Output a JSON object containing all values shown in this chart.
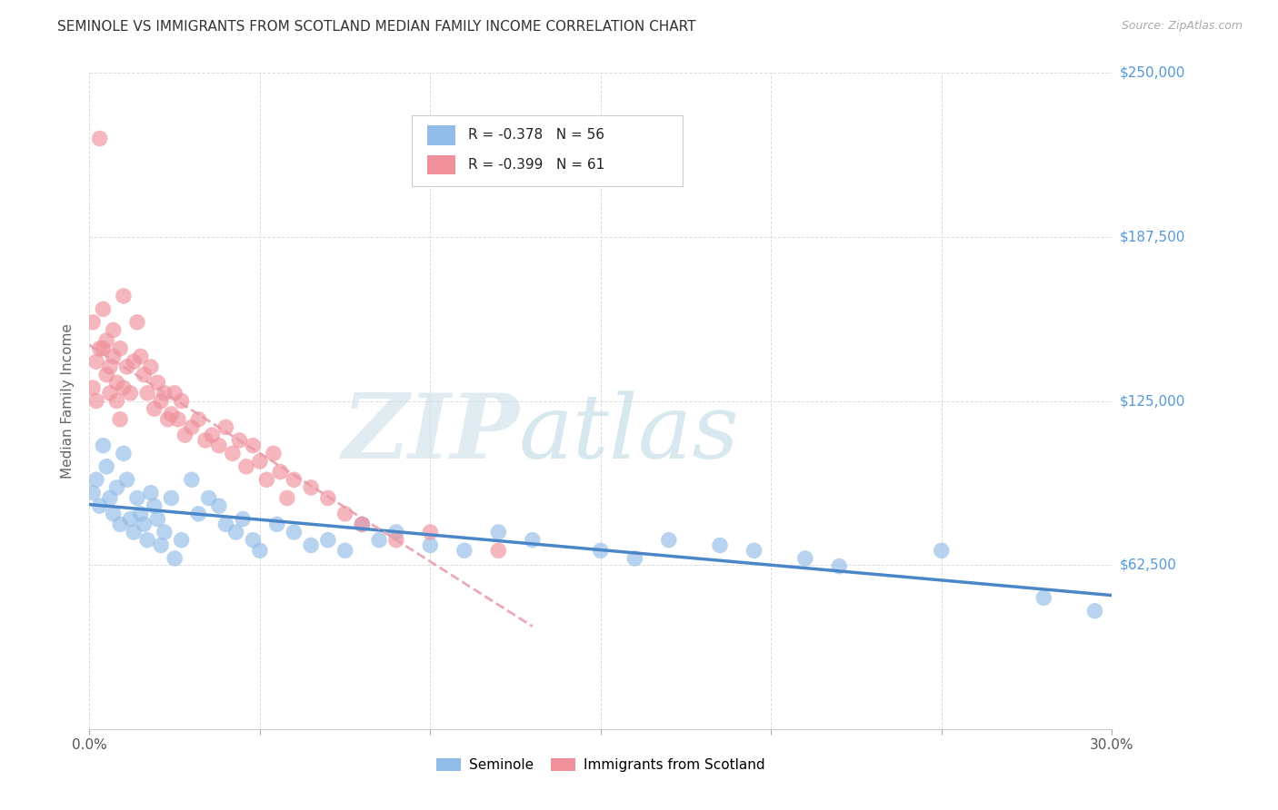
{
  "title": "SEMINOLE VS IMMIGRANTS FROM SCOTLAND MEDIAN FAMILY INCOME CORRELATION CHART",
  "source_text": "Source: ZipAtlas.com",
  "ylabel": "Median Family Income",
  "xlim": [
    0.0,
    0.3
  ],
  "ylim": [
    0,
    250000
  ],
  "yticks": [
    0,
    62500,
    125000,
    187500,
    250000
  ],
  "ytick_labels": [
    "",
    "$62,500",
    "$125,000",
    "$187,500",
    "$250,000"
  ],
  "xtick_positions": [
    0.0,
    0.05,
    0.1,
    0.15,
    0.2,
    0.25,
    0.3
  ],
  "xtick_labels": [
    "0.0%",
    "",
    "",
    "",
    "",
    "",
    "30.0%"
  ],
  "seminole_color": "#92bce8",
  "scotland_color": "#f0909a",
  "trend_seminole_color": "#4a86c8",
  "trend_scotland_color": "#e89aaa",
  "legend_r_seminole": "-0.378",
  "legend_n_seminole": "56",
  "legend_r_scotland": "-0.399",
  "legend_n_scotland": "61",
  "watermark_zip": "ZIP",
  "watermark_atlas": "atlas",
  "bg_color": "#ffffff",
  "title_color": "#333333",
  "source_color": "#aaaaaa",
  "ytick_color": "#5599dd",
  "grid_color": "#dddddd",
  "ylabel_color": "#666666",
  "seminole_x": [
    0.001,
    0.002,
    0.003,
    0.004,
    0.005,
    0.006,
    0.007,
    0.008,
    0.009,
    0.01,
    0.011,
    0.012,
    0.013,
    0.014,
    0.015,
    0.016,
    0.017,
    0.018,
    0.019,
    0.02,
    0.021,
    0.022,
    0.024,
    0.025,
    0.027,
    0.03,
    0.032,
    0.035,
    0.038,
    0.04,
    0.043,
    0.045,
    0.048,
    0.05,
    0.055,
    0.06,
    0.065,
    0.07,
    0.075,
    0.08,
    0.085,
    0.09,
    0.1,
    0.11,
    0.12,
    0.13,
    0.15,
    0.16,
    0.17,
    0.185,
    0.195,
    0.21,
    0.22,
    0.25,
    0.28,
    0.295
  ],
  "seminole_y": [
    90000,
    95000,
    85000,
    108000,
    100000,
    88000,
    82000,
    92000,
    78000,
    105000,
    95000,
    80000,
    75000,
    88000,
    82000,
    78000,
    72000,
    90000,
    85000,
    80000,
    70000,
    75000,
    88000,
    65000,
    72000,
    95000,
    82000,
    88000,
    85000,
    78000,
    75000,
    80000,
    72000,
    68000,
    78000,
    75000,
    70000,
    72000,
    68000,
    78000,
    72000,
    75000,
    70000,
    68000,
    75000,
    72000,
    68000,
    65000,
    72000,
    70000,
    68000,
    65000,
    62000,
    68000,
    50000,
    45000
  ],
  "scotland_x": [
    0.001,
    0.001,
    0.002,
    0.002,
    0.003,
    0.003,
    0.004,
    0.004,
    0.005,
    0.005,
    0.006,
    0.006,
    0.007,
    0.007,
    0.008,
    0.008,
    0.009,
    0.009,
    0.01,
    0.01,
    0.011,
    0.012,
    0.013,
    0.014,
    0.015,
    0.016,
    0.017,
    0.018,
    0.019,
    0.02,
    0.021,
    0.022,
    0.023,
    0.024,
    0.025,
    0.026,
    0.027,
    0.028,
    0.03,
    0.032,
    0.034,
    0.036,
    0.038,
    0.04,
    0.042,
    0.044,
    0.046,
    0.048,
    0.05,
    0.052,
    0.054,
    0.056,
    0.058,
    0.06,
    0.065,
    0.07,
    0.075,
    0.08,
    0.09,
    0.1,
    0.12
  ],
  "scotland_y": [
    130000,
    155000,
    140000,
    125000,
    145000,
    225000,
    145000,
    160000,
    135000,
    148000,
    128000,
    138000,
    142000,
    152000,
    132000,
    125000,
    145000,
    118000,
    130000,
    165000,
    138000,
    128000,
    140000,
    155000,
    142000,
    135000,
    128000,
    138000,
    122000,
    132000,
    125000,
    128000,
    118000,
    120000,
    128000,
    118000,
    125000,
    112000,
    115000,
    118000,
    110000,
    112000,
    108000,
    115000,
    105000,
    110000,
    100000,
    108000,
    102000,
    95000,
    105000,
    98000,
    88000,
    95000,
    92000,
    88000,
    82000,
    78000,
    72000,
    75000,
    68000
  ]
}
